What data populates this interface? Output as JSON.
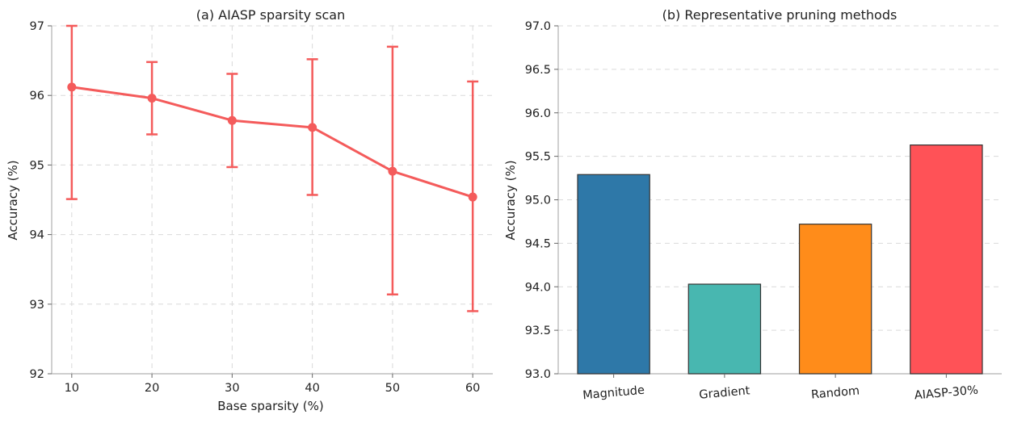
{
  "chart_data": [
    {
      "type": "line",
      "title": "(a) AIASP sparsity scan",
      "xlabel": "Base sparsity (%)",
      "ylabel": "Accuracy (%)",
      "x": [
        10,
        20,
        30,
        40,
        50,
        60
      ],
      "xticks": [
        "10",
        "20",
        "30",
        "40",
        "50",
        "60"
      ],
      "xlim": [
        7.5,
        62.5
      ],
      "ylim": [
        92,
        97
      ],
      "yticks": [
        "92",
        "93",
        "94",
        "95",
        "96",
        "97"
      ],
      "grid": true,
      "series": [
        {
          "values": [
            96.12,
            95.96,
            95.64,
            95.54,
            94.91,
            94.54
          ],
          "err_upper": [
            97.0,
            96.48,
            96.31,
            96.52,
            96.7,
            96.2
          ],
          "err_lower": [
            94.51,
            95.44,
            94.97,
            94.57,
            93.14,
            92.9
          ],
          "color": "#f45b5b"
        }
      ]
    },
    {
      "type": "bar",
      "title": "(b) Representative pruning methods",
      "xlabel": "",
      "ylabel": "Accuracy (%)",
      "categories": [
        "Magnitude",
        "Gradient",
        "Random",
        "AIASP-30%"
      ],
      "values": [
        95.29,
        94.03,
        94.72,
        95.63
      ],
      "colors": [
        "#2e78a8",
        "#48b7b0",
        "#ff8c1a",
        "#ff5257"
      ],
      "ylim": [
        93.0,
        97.0
      ],
      "yticks": [
        "93.0",
        "93.5",
        "94.0",
        "94.5",
        "95.0",
        "95.5",
        "96.0",
        "96.5",
        "97.0"
      ],
      "grid": true
    }
  ]
}
